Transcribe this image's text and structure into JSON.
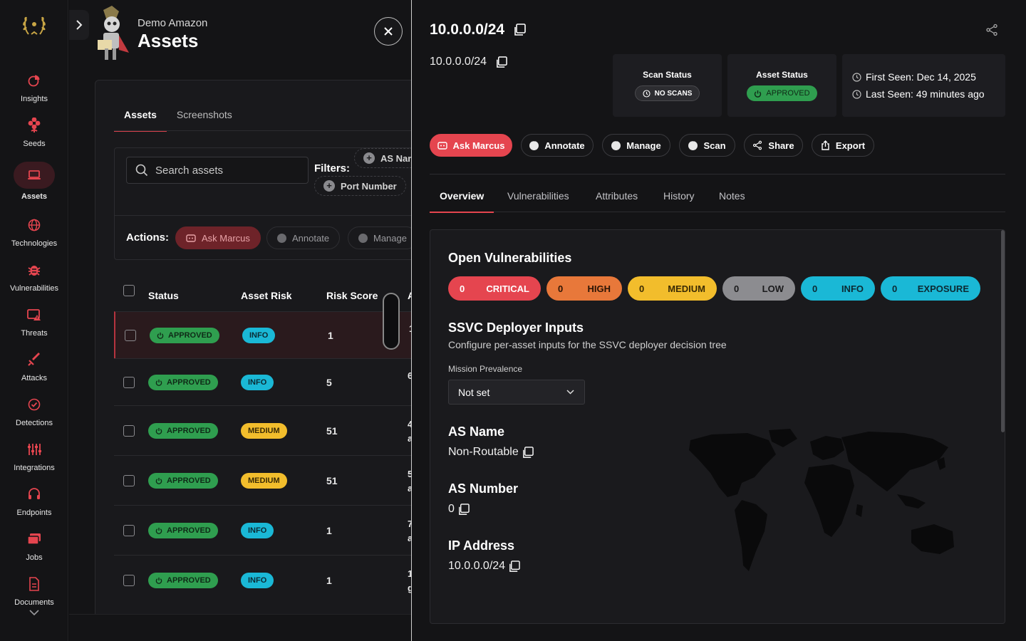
{
  "sidebar": {
    "items": [
      {
        "label": "Insights",
        "icon": "pie-chart-icon"
      },
      {
        "label": "Seeds",
        "icon": "flower-icon"
      },
      {
        "label": "Assets",
        "icon": "laptop-icon",
        "active": true
      },
      {
        "label": "Technologies",
        "icon": "globe-icon"
      },
      {
        "label": "Vulnerabilities",
        "icon": "bug-icon"
      },
      {
        "label": "Threats",
        "icon": "threat-icon"
      },
      {
        "label": "Attacks",
        "icon": "sword-icon"
      },
      {
        "label": "Detections",
        "icon": "check-circle-icon"
      },
      {
        "label": "Integrations",
        "icon": "integrations-icon"
      },
      {
        "label": "Endpoints",
        "icon": "headset-icon"
      },
      {
        "label": "Jobs",
        "icon": "jobs-icon"
      },
      {
        "label": "Documents",
        "icon": "document-icon"
      }
    ]
  },
  "header": {
    "org": "Demo Amazon",
    "title": "Assets"
  },
  "assets_tabs": [
    "Assets",
    "Screenshots"
  ],
  "search": {
    "placeholder": "Search assets"
  },
  "filters": {
    "label": "Filters:",
    "chips": [
      "AS Nam",
      "Port Number"
    ]
  },
  "actions": {
    "label": "Actions:",
    "ask": "Ask Marcus",
    "annotate": "Annotate",
    "manage": "Manage"
  },
  "table": {
    "columns": [
      "Status",
      "Asset Risk",
      "Risk Score",
      "A"
    ],
    "rows": [
      {
        "status": "APPROVED",
        "risk": "INFO",
        "score": "1",
        "cut1": "1",
        "cut2": ""
      },
      {
        "status": "APPROVED",
        "risk": "INFO",
        "score": "5",
        "cut1": "6",
        "cut2": ""
      },
      {
        "status": "APPROVED",
        "risk": "MEDIUM",
        "score": "51",
        "cut1": "4",
        "cut2": "a"
      },
      {
        "status": "APPROVED",
        "risk": "MEDIUM",
        "score": "51",
        "cut1": "5",
        "cut2": "a"
      },
      {
        "status": "APPROVED",
        "risk": "INFO",
        "score": "1",
        "cut1": "7",
        "cut2": "a"
      },
      {
        "status": "APPROVED",
        "risk": "INFO",
        "score": "1",
        "cut1": "1",
        "cut2": "g"
      }
    ]
  },
  "detail": {
    "title": "10.0.0.0/24",
    "subtitle": "10.0.0.0/24",
    "scan_status": {
      "label": "Scan Status",
      "value": "NO SCANS"
    },
    "asset_status": {
      "label": "Asset Status",
      "value": "APPROVED"
    },
    "first_seen": "First Seen: Dec 14, 2025",
    "last_seen": "Last Seen: 49 minutes ago",
    "buttons": {
      "ask": "Ask Marcus",
      "annotate": "Annotate",
      "manage": "Manage",
      "scan": "Scan",
      "share": "Share",
      "export": "Export"
    },
    "tabs": [
      "Overview",
      "Vulnerabilities",
      "Attributes",
      "History",
      "Notes"
    ],
    "open_vulns": {
      "title": "Open Vulnerabilities",
      "items": [
        {
          "count": "0",
          "label": "CRITICAL",
          "color": "#e5454f",
          "text": "#ffffff"
        },
        {
          "count": "0",
          "label": "HIGH",
          "color": "#e8783a",
          "text": "#2a1405"
        },
        {
          "count": "0",
          "label": "MEDIUM",
          "color": "#f2bd2c",
          "text": "#3a2b05"
        },
        {
          "count": "0",
          "label": "LOW",
          "color": "#8c8c90",
          "text": "#1a1a1c"
        },
        {
          "count": "0",
          "label": "INFO",
          "color": "#1ab8d6",
          "text": "#0c2a33"
        },
        {
          "count": "0",
          "label": "EXPOSURE",
          "color": "#1ab8d6",
          "text": "#0c2a33"
        }
      ]
    },
    "ssvc": {
      "title": "SSVC Deployer Inputs",
      "description": "Configure per-asset inputs for the SSVC deployer decision tree",
      "field_label": "Mission Prevalence",
      "field_value": "Not set"
    },
    "as_name": {
      "label": "AS Name",
      "value": "Non-Routable"
    },
    "as_number": {
      "label": "AS Number",
      "value": "0"
    },
    "ip": {
      "label": "IP Address",
      "value": "10.0.0.0/24"
    }
  },
  "colors": {
    "accent": "#e5454f",
    "approved": "#2f9e4f",
    "info": "#1ab8d6",
    "medium": "#f2bd2c"
  }
}
